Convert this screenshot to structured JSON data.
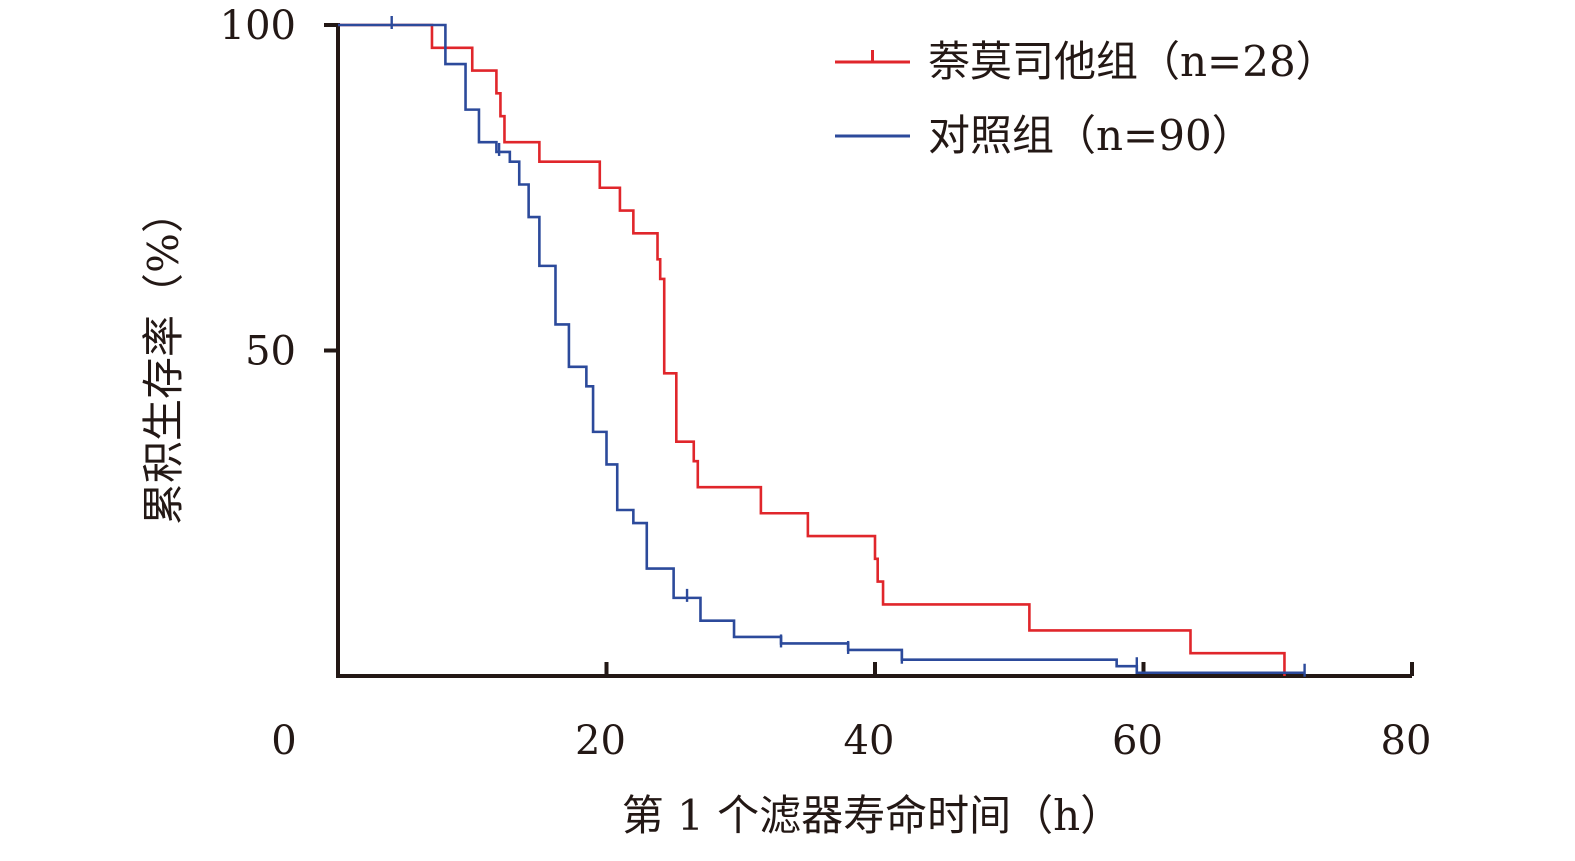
{
  "chart_data": {
    "type": "line",
    "subtype": "kaplan-meier-step",
    "title": "",
    "xlabel": "第 1 个滤器寿命时间（h）",
    "ylabel": "累积生存率（%）",
    "xlim": [
      0,
      80
    ],
    "ylim": [
      0,
      100
    ],
    "x_ticks": [
      20,
      40,
      60,
      80
    ],
    "x_tick_labels": [
      "20",
      "40",
      "60",
      "80"
    ],
    "x_origin_label": "0",
    "y_ticks": [
      50,
      100
    ],
    "y_tick_labels": [
      "50",
      "100"
    ],
    "grid": false,
    "legend_position": "top-right",
    "series": [
      {
        "name": "萘莫司他组（n=28）",
        "color": "#e0262b",
        "legend_marker": "censor-tick",
        "steps": [
          [
            0,
            100
          ],
          [
            7,
            96.5
          ],
          [
            10,
            93
          ],
          [
            11.8,
            89.5
          ],
          [
            12.1,
            86
          ],
          [
            12.4,
            82
          ],
          [
            15,
            79
          ],
          [
            19.5,
            75
          ],
          [
            21,
            71.5
          ],
          [
            22,
            68
          ],
          [
            23.8,
            64
          ],
          [
            24,
            61
          ],
          [
            24.3,
            46.5
          ],
          [
            25.2,
            36
          ],
          [
            26.5,
            33
          ],
          [
            26.8,
            29
          ],
          [
            31.5,
            25
          ],
          [
            35,
            21.5
          ],
          [
            40,
            18
          ],
          [
            40.2,
            14.5
          ],
          [
            40.6,
            11
          ],
          [
            51.5,
            7
          ],
          [
            63.5,
            3.5
          ],
          [
            70.5,
            0
          ]
        ],
        "censored": []
      },
      {
        "name": "对照组（n=90）",
        "color": "#2c4a9b",
        "legend_marker": "line",
        "steps": [
          [
            0,
            100
          ],
          [
            8,
            94
          ],
          [
            9.5,
            87
          ],
          [
            10.5,
            82
          ],
          [
            11.8,
            80.5
          ],
          [
            12.8,
            79
          ],
          [
            13.5,
            75.5
          ],
          [
            14.2,
            70.5
          ],
          [
            15,
            63
          ],
          [
            16.2,
            54
          ],
          [
            17.2,
            47.5
          ],
          [
            18.5,
            44.5
          ],
          [
            19,
            37.5
          ],
          [
            20,
            32.5
          ],
          [
            20.8,
            25.5
          ],
          [
            22,
            23.5
          ],
          [
            23,
            16.5
          ],
          [
            25,
            12
          ],
          [
            27,
            8.5
          ],
          [
            29.5,
            6
          ],
          [
            33,
            5
          ],
          [
            38,
            4
          ],
          [
            42,
            2.5
          ],
          [
            58,
            1.5
          ],
          [
            59.5,
            0.5
          ]
        ],
        "censored": [
          [
            4,
            100
          ],
          [
            12,
            80.5
          ],
          [
            26,
            12
          ],
          [
            33,
            5
          ],
          [
            38,
            4
          ],
          [
            42,
            2.5
          ],
          [
            59.5,
            1.5
          ],
          [
            72,
            0.5
          ]
        ],
        "end_x": 72
      }
    ]
  }
}
